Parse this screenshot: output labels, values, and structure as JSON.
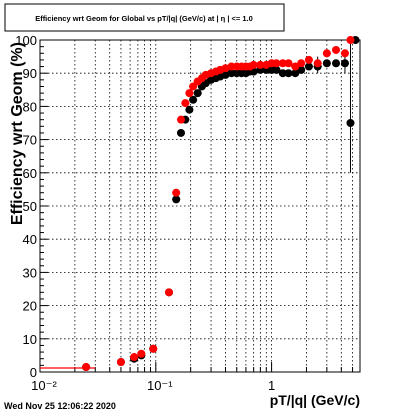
{
  "chart_data": {
    "type": "scatter",
    "title": "Efficiency wrt Geom for Global vs pT/|q| (GeV/c) at | η | <= 1.0",
    "xlabel": "pT/|q| (GeV/c)",
    "ylabel": "Efficiency wrt Geom (%)",
    "xscale": "log",
    "xlim": [
      0.01,
      5.8
    ],
    "ylim": [
      0,
      100
    ],
    "grid": true,
    "x_tick_labels": [
      "10⁻²",
      "10⁻¹",
      "1"
    ],
    "y_tick_labels": [
      "0",
      "10",
      "20",
      "30",
      "40",
      "50",
      "60",
      "70",
      "80",
      "90",
      "100"
    ],
    "series": [
      {
        "color": "#000000",
        "points": [
          [
            0.025,
            1.5
          ],
          [
            0.05,
            3
          ],
          [
            0.065,
            4
          ],
          [
            0.075,
            5
          ],
          [
            0.095,
            7
          ],
          [
            0.13,
            24
          ],
          [
            0.15,
            52
          ],
          [
            0.165,
            72
          ],
          [
            0.18,
            76
          ],
          [
            0.195,
            79
          ],
          [
            0.21,
            82
          ],
          [
            0.23,
            84
          ],
          [
            0.25,
            86
          ],
          [
            0.27,
            87
          ],
          [
            0.3,
            88
          ],
          [
            0.33,
            88.5
          ],
          [
            0.36,
            89
          ],
          [
            0.4,
            89.5
          ],
          [
            0.45,
            90
          ],
          [
            0.5,
            90
          ],
          [
            0.55,
            90
          ],
          [
            0.6,
            90
          ],
          [
            0.65,
            90.5
          ],
          [
            0.7,
            90.5
          ],
          [
            0.8,
            91
          ],
          [
            0.9,
            91
          ],
          [
            1.0,
            91
          ],
          [
            1.1,
            91
          ],
          [
            1.25,
            90
          ],
          [
            1.4,
            90
          ],
          [
            1.6,
            90
          ],
          [
            1.8,
            91
          ],
          [
            2.1,
            92
          ],
          [
            2.5,
            92
          ],
          [
            3.0,
            93
          ],
          [
            3.6,
            93
          ],
          [
            4.3,
            93
          ],
          [
            4.8,
            75
          ],
          [
            5.3,
            100
          ]
        ]
      },
      {
        "color": "#ff0000",
        "points": [
          [
            0.025,
            1.5
          ],
          [
            0.05,
            3
          ],
          [
            0.065,
            4.5
          ],
          [
            0.075,
            5.5
          ],
          [
            0.095,
            7
          ],
          [
            0.13,
            24
          ],
          [
            0.15,
            54
          ],
          [
            0.165,
            76
          ],
          [
            0.18,
            81
          ],
          [
            0.195,
            84
          ],
          [
            0.21,
            86
          ],
          [
            0.23,
            87.5
          ],
          [
            0.25,
            88.5
          ],
          [
            0.27,
            89.5
          ],
          [
            0.3,
            90
          ],
          [
            0.33,
            90.5
          ],
          [
            0.36,
            91
          ],
          [
            0.4,
            91.5
          ],
          [
            0.45,
            92
          ],
          [
            0.5,
            92
          ],
          [
            0.55,
            92
          ],
          [
            0.6,
            92
          ],
          [
            0.65,
            92
          ],
          [
            0.7,
            92.5
          ],
          [
            0.8,
            92.5
          ],
          [
            0.9,
            92.5
          ],
          [
            1.0,
            93
          ],
          [
            1.1,
            93
          ],
          [
            1.25,
            93
          ],
          [
            1.4,
            93
          ],
          [
            1.6,
            92
          ],
          [
            1.8,
            93
          ],
          [
            2.1,
            94
          ],
          [
            2.5,
            93
          ],
          [
            3.0,
            96
          ],
          [
            3.6,
            97
          ],
          [
            4.3,
            96
          ],
          [
            4.8,
            100
          ]
        ]
      }
    ],
    "black_error_bars": [
      {
        "x": 4.8,
        "low": 60,
        "high": 100
      },
      {
        "x": 4.3,
        "low": 90,
        "high": 96
      },
      {
        "x": 2.5,
        "low": 90,
        "high": 95
      }
    ],
    "first_bin_bar": {
      "x_from": 0.01,
      "x_to": 0.03,
      "y": 1.2,
      "color": "#ff0000"
    }
  },
  "footer": {
    "timestamp": "Wed Nov 25 12:06:22 2020"
  }
}
